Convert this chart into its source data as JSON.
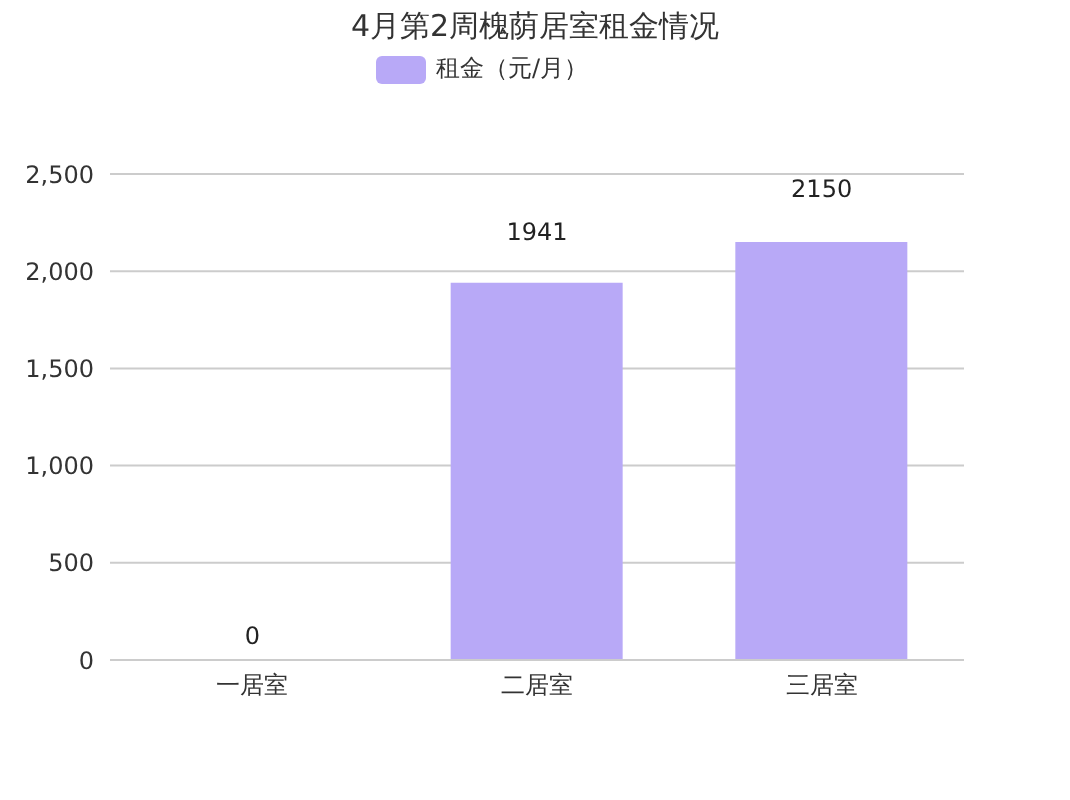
{
  "chart_data": {
    "type": "bar",
    "title": "4月第2周槐荫居室租金情况",
    "categories": [
      "一居室",
      "二居室",
      "三居室"
    ],
    "series": [
      {
        "name": "租金（元/月）",
        "color": "#b8a9f7",
        "values": [
          0,
          1941,
          2150
        ]
      }
    ],
    "ylim": [
      0,
      2500
    ],
    "yticks": [
      0,
      500,
      {
        "value": 1000,
        "label": "1,000"
      },
      {
        "value": 1500,
        "label": "1,500"
      },
      {
        "value": 2000,
        "label": "2,000"
      },
      {
        "value": 2500,
        "label": "2,500"
      }
    ],
    "grid": "y",
    "legend": "top",
    "data_labels": true
  }
}
